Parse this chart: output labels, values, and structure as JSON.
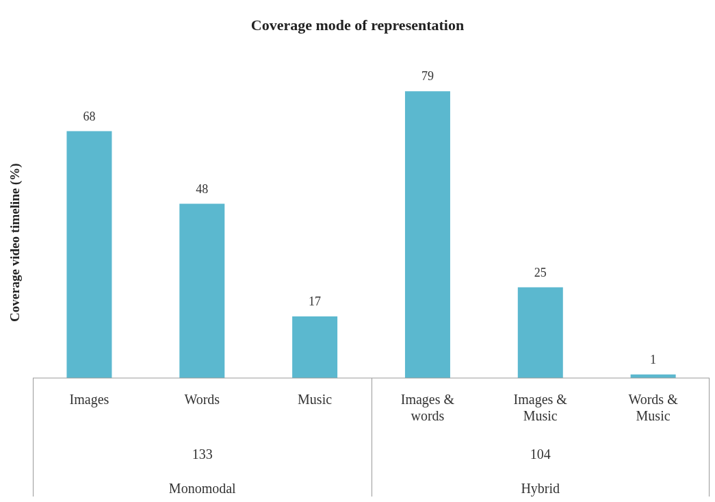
{
  "chart_data": {
    "type": "bar",
    "title": "Coverage mode of representation",
    "ylabel": "Coverage video timeline (%)",
    "categories": [
      "Images",
      "Words",
      "Music",
      "Images & words",
      "Images & Music",
      "Words & Music"
    ],
    "values": [
      68,
      48,
      17,
      79,
      25,
      1
    ],
    "color": "#5bb8cf",
    "data_labels": true,
    "annotations": [
      "133",
      "Monomodal",
      "104",
      "Hybrid"
    ]
  }
}
